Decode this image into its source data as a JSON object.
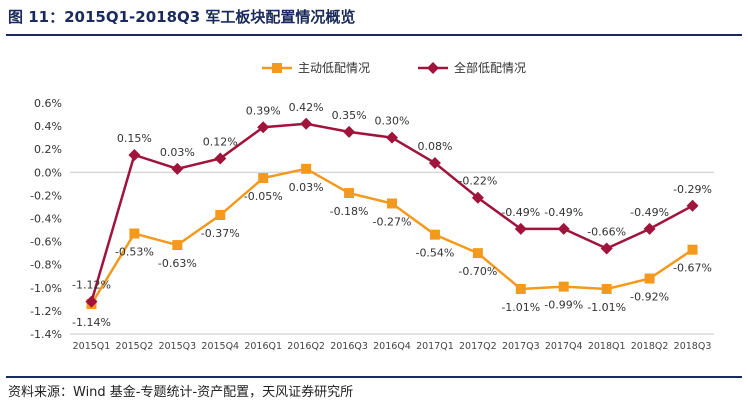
{
  "header": {
    "title": "图 11：2015Q1-2018Q3 军工板块配置情况概览"
  },
  "footer": {
    "source": "资料来源：Wind 基金-专题统计-资产配置，天风证券研究所"
  },
  "chart_data": {
    "type": "line",
    "title": "",
    "xlabel": "",
    "ylabel": "",
    "ylim": [
      -1.4,
      0.6
    ],
    "yticks": [
      0.6,
      0.4,
      0.2,
      0.0,
      -0.2,
      -0.4,
      -0.6,
      -0.8,
      -1.0,
      -1.2,
      -1.4
    ],
    "ytick_labels": [
      "0.6%",
      "0.4%",
      "0.2%",
      "0.0%",
      "-0.2%",
      "-0.4%",
      "-0.6%",
      "-0.8%",
      "-1.0%",
      "-1.2%",
      "-1.4%"
    ],
    "categories": [
      "2015Q1",
      "2015Q2",
      "2015Q3",
      "2015Q4",
      "2016Q1",
      "2016Q2",
      "2016Q3",
      "2016Q4",
      "2017Q1",
      "2017Q2",
      "2017Q3",
      "2017Q4",
      "2018Q1",
      "2018Q2",
      "2018Q3"
    ],
    "legend_position": "top-center",
    "series": [
      {
        "name": "主动低配情况",
        "color": "#f39a1e",
        "marker": "square",
        "label_position": "below",
        "values": [
          -1.14,
          -0.53,
          -0.63,
          -0.37,
          -0.05,
          0.03,
          -0.18,
          -0.27,
          -0.54,
          -0.7,
          -1.01,
          -0.99,
          -1.01,
          -0.92,
          -0.67
        ],
        "labels": [
          "-1.14%",
          "-0.53%",
          "-0.63%",
          "-0.37%",
          "-0.05%",
          "0.03%",
          "-0.18%",
          "-0.27%",
          "-0.54%",
          "-0.70%",
          "-1.01%",
          "-0.99%",
          "-1.01%",
          "-0.92%",
          "-0.67%"
        ]
      },
      {
        "name": "全部低配情况",
        "color": "#a0143c",
        "marker": "diamond",
        "label_position": "above",
        "values": [
          -1.12,
          0.15,
          0.03,
          0.12,
          0.39,
          0.42,
          0.35,
          0.3,
          0.08,
          -0.22,
          -0.49,
          -0.49,
          -0.66,
          -0.49,
          -0.29
        ],
        "labels": [
          "-1.12%",
          "0.15%",
          "0.03%",
          "0.12%",
          "0.39%",
          "0.42%",
          "0.35%",
          "0.30%",
          "0.08%",
          "-0.22%",
          "-0.49%",
          "-0.49%",
          "-0.66%",
          "-0.49%",
          "-0.29%"
        ]
      }
    ]
  }
}
